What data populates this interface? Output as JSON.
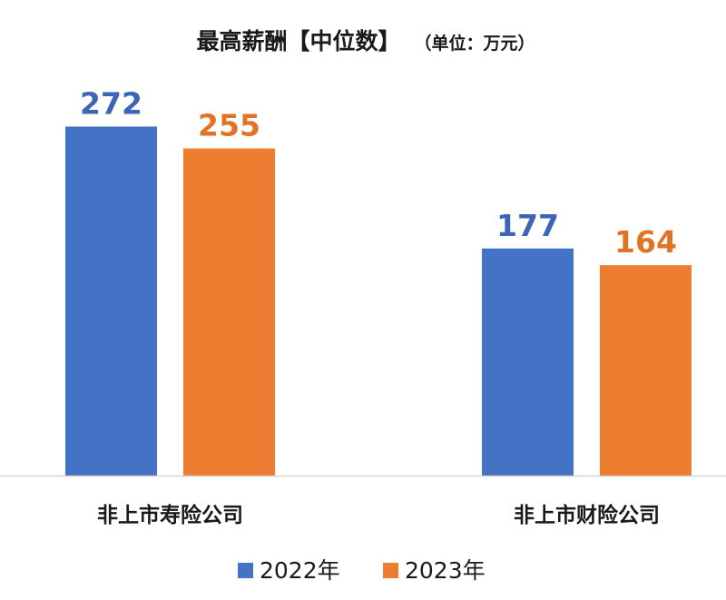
{
  "chart_data": {
    "type": "bar",
    "title": "最高薪酬【中位数】",
    "subtitle": "（单位：万元）",
    "categories": [
      "非上市寿险公司",
      "非上市财险公司"
    ],
    "series": [
      {
        "name": "2022年",
        "color": "#4472C4",
        "values": [
          272,
          177
        ]
      },
      {
        "name": "2023年",
        "color": "#ED7D31",
        "values": [
          255,
          164
        ]
      }
    ],
    "ylim": [
      0,
      290
    ],
    "grid": false,
    "legend_position": "bottom",
    "value_label_colors": [
      "#3B66B7",
      "#E07325"
    ]
  }
}
